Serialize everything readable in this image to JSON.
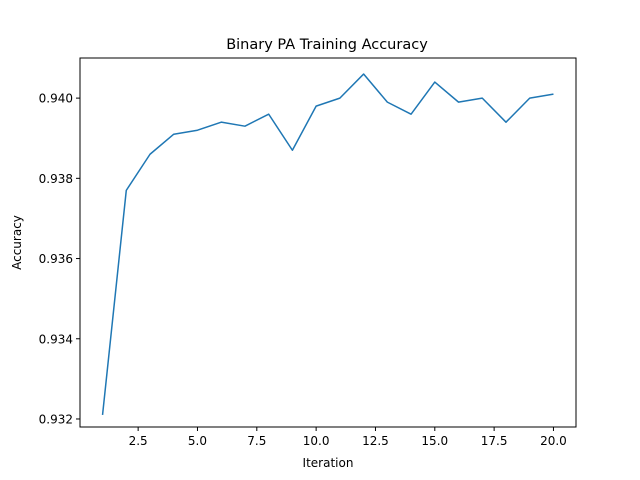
{
  "chart_data": {
    "type": "line",
    "title": "Binary PA Training Accuracy",
    "xlabel": "Iteration",
    "ylabel": "Accuracy",
    "xlim": [
      0.05,
      20.95
    ],
    "ylim": [
      0.9318,
      0.941
    ],
    "xticks": [
      2.5,
      5.0,
      7.5,
      10.0,
      12.5,
      15.0,
      17.5,
      20.0
    ],
    "xtick_labels": [
      "2.5",
      "5.0",
      "7.5",
      "10.0",
      "12.5",
      "15.0",
      "17.5",
      "20.0"
    ],
    "yticks": [
      0.932,
      0.934,
      0.936,
      0.938,
      0.94
    ],
    "ytick_labels": [
      "0.932",
      "0.934",
      "0.936",
      "0.938",
      "0.940"
    ],
    "grid": false,
    "line_color": "#1f77b4",
    "series": [
      {
        "x": [
          1,
          2,
          3,
          4,
          5,
          6,
          7,
          8,
          9,
          10,
          11,
          12,
          13,
          14,
          15,
          16,
          17,
          18,
          19,
          20
        ],
        "values": [
          0.9321,
          0.9377,
          0.9386,
          0.9391,
          0.9392,
          0.9394,
          0.9393,
          0.9396,
          0.9387,
          0.9398,
          0.94,
          0.9406,
          0.9399,
          0.9396,
          0.9404,
          0.9399,
          0.94,
          0.9394,
          0.94,
          0.9401
        ]
      }
    ]
  }
}
